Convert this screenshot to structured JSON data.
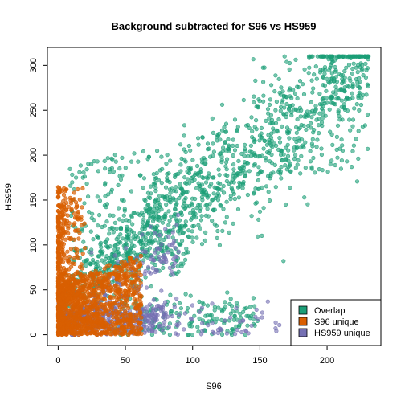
{
  "chart_data": {
    "type": "scatter",
    "title": "Background subtracted for S96 vs HS959",
    "xlabel": "S96",
    "ylabel": "HS959",
    "xlim": [
      -8,
      240
    ],
    "ylim": [
      -12,
      320
    ],
    "x_ticks": [
      0,
      50,
      100,
      150,
      200
    ],
    "y_ticks": [
      0,
      50,
      100,
      150,
      200,
      250,
      300
    ],
    "grid": false,
    "legend_position": "bottom-right",
    "series": [
      {
        "name": "Overlap",
        "color": "#1B9E77",
        "approx_point_count": "thousands",
        "x_range": [
          2,
          232
        ],
        "y_range": [
          0,
          310
        ]
      },
      {
        "name": "S96 unique",
        "color": "#D95F02",
        "approx_point_count": "thousands",
        "x_range": [
          0,
          70
        ],
        "y_range": [
          0,
          165
        ]
      },
      {
        "name": "HS959 unique",
        "color": "#7570B3",
        "approx_point_count": "thousands",
        "x_range": [
          0,
          165
        ],
        "y_range": [
          0,
          190
        ]
      }
    ]
  }
}
